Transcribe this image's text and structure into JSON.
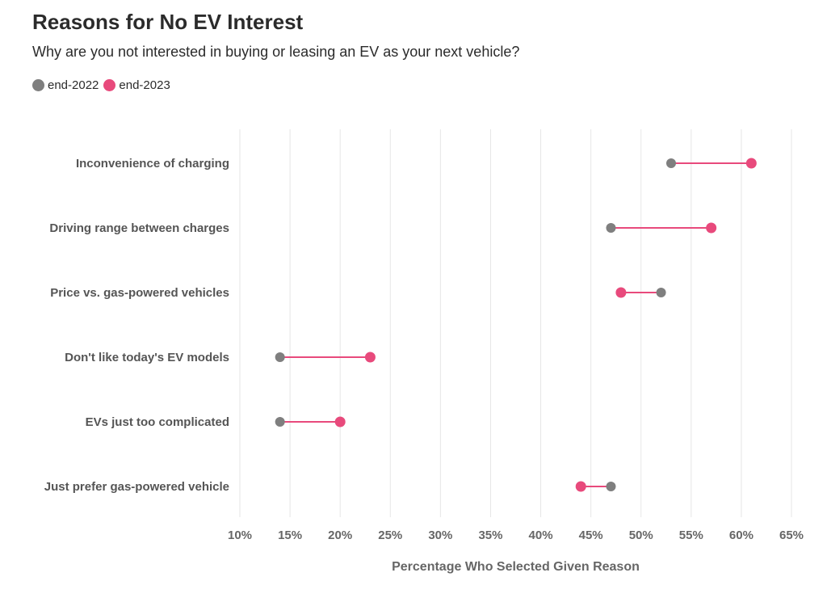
{
  "chart_data": {
    "type": "dumbbell",
    "title": "Reasons for No EV Interest",
    "subtitle": "Why are you not interested in buying or leasing an EV as your next vehicle?",
    "xlabel": "Percentage Who Selected Given Reason",
    "ylabel": "",
    "xlim": [
      10,
      65
    ],
    "x_ticks": [
      10,
      15,
      20,
      25,
      30,
      35,
      40,
      45,
      50,
      55,
      60,
      65
    ],
    "x_tick_labels": [
      "10%",
      "15%",
      "20%",
      "25%",
      "30%",
      "35%",
      "40%",
      "45%",
      "50%",
      "55%",
      "60%",
      "65%"
    ],
    "grid": "vertical",
    "legend_position": "top-left",
    "categories": [
      "Inconvenience of charging",
      "Driving range between charges",
      "Price vs. gas-powered vehicles",
      "Don't like today's EV models",
      "EVs just too complicated",
      "Just prefer gas-powered vehicle"
    ],
    "series": [
      {
        "name": "end-2022",
        "color": "#7f7f7f",
        "values": [
          53,
          47,
          52,
          14,
          14,
          47
        ]
      },
      {
        "name": "end-2023",
        "color": "#e84a7c",
        "values": [
          61,
          57,
          48,
          23,
          20,
          44
        ]
      }
    ],
    "connector_color": "#e84a7c"
  }
}
